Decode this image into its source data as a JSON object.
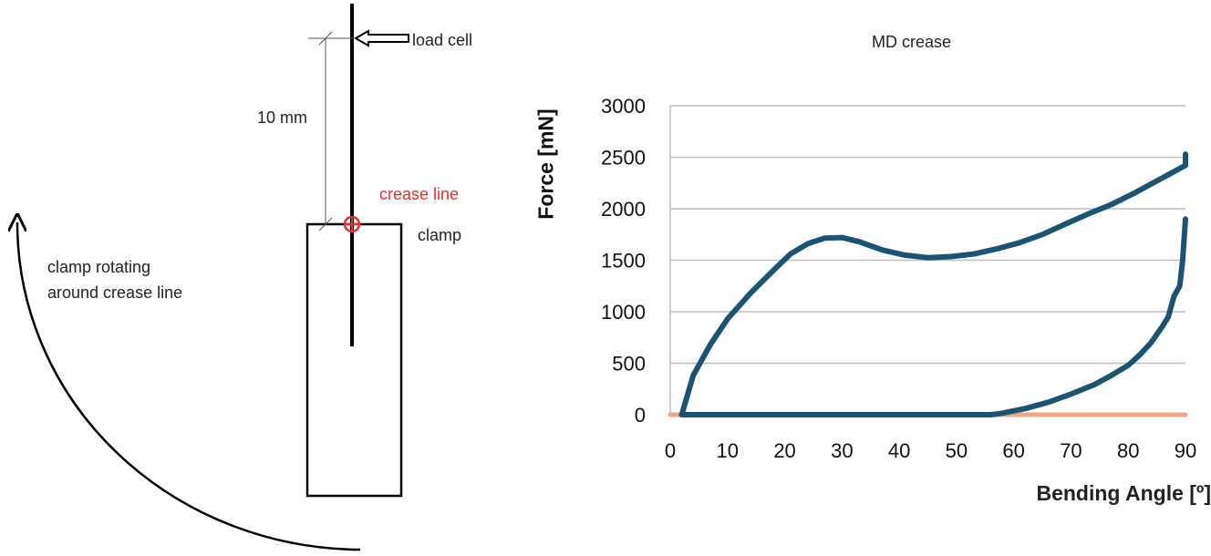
{
  "diagram": {
    "load_cell_label": "load cell",
    "dimension_label": "10 mm",
    "crease_label": "crease line",
    "clamp_label": "clamp",
    "rotation_label_line1": "clamp rotating",
    "rotation_label_line2": "around crease line",
    "crease_color": "#e03030"
  },
  "chart_data": {
    "type": "line",
    "title": "MD crease",
    "xlabel": "Bending Angle [º]",
    "ylabel": "Force  [mN]",
    "xlim": [
      0,
      90
    ],
    "ylim": [
      0,
      3000
    ],
    "xticks": [
      "0",
      "10",
      "20",
      "30",
      "40",
      "50",
      "60",
      "70",
      "80",
      "90"
    ],
    "yticks": [
      "0",
      "500",
      "1000",
      "1500",
      "2000",
      "2500",
      "3000"
    ],
    "grid": "horizontal",
    "series": [
      {
        "color": "#1a5472",
        "points": [
          [
            2,
            0
          ],
          [
            4,
            380
          ],
          [
            7,
            680
          ],
          [
            10,
            930
          ],
          [
            14,
            1180
          ],
          [
            18,
            1400
          ],
          [
            21,
            1560
          ],
          [
            24,
            1660
          ],
          [
            27,
            1715
          ],
          [
            30,
            1720
          ],
          [
            33,
            1680
          ],
          [
            37,
            1600
          ],
          [
            41,
            1550
          ],
          [
            45,
            1525
          ],
          [
            49,
            1535
          ],
          [
            53,
            1560
          ],
          [
            57,
            1610
          ],
          [
            61,
            1670
          ],
          [
            65,
            1750
          ],
          [
            69,
            1850
          ],
          [
            73,
            1950
          ],
          [
            77,
            2040
          ],
          [
            81,
            2150
          ],
          [
            84,
            2240
          ],
          [
            87,
            2330
          ],
          [
            89,
            2390
          ],
          [
            90,
            2420
          ],
          [
            90,
            2530
          ]
        ]
      },
      {
        "color": "#1a5472",
        "points": [
          [
            90,
            1900
          ],
          [
            89.5,
            1500
          ],
          [
            89,
            1250
          ],
          [
            88,
            1150
          ],
          [
            87,
            950
          ],
          [
            86,
            860
          ],
          [
            84,
            700
          ],
          [
            82,
            580
          ],
          [
            80,
            480
          ],
          [
            77,
            380
          ],
          [
            74,
            290
          ],
          [
            70,
            200
          ],
          [
            66,
            120
          ],
          [
            62,
            60
          ],
          [
            58,
            15
          ],
          [
            56,
            0
          ],
          [
            40,
            0
          ],
          [
            20,
            0
          ],
          [
            2,
            0
          ]
        ]
      },
      {
        "color": "#f0a488",
        "points": [
          [
            0,
            0
          ],
          [
            90,
            0
          ]
        ]
      }
    ]
  }
}
